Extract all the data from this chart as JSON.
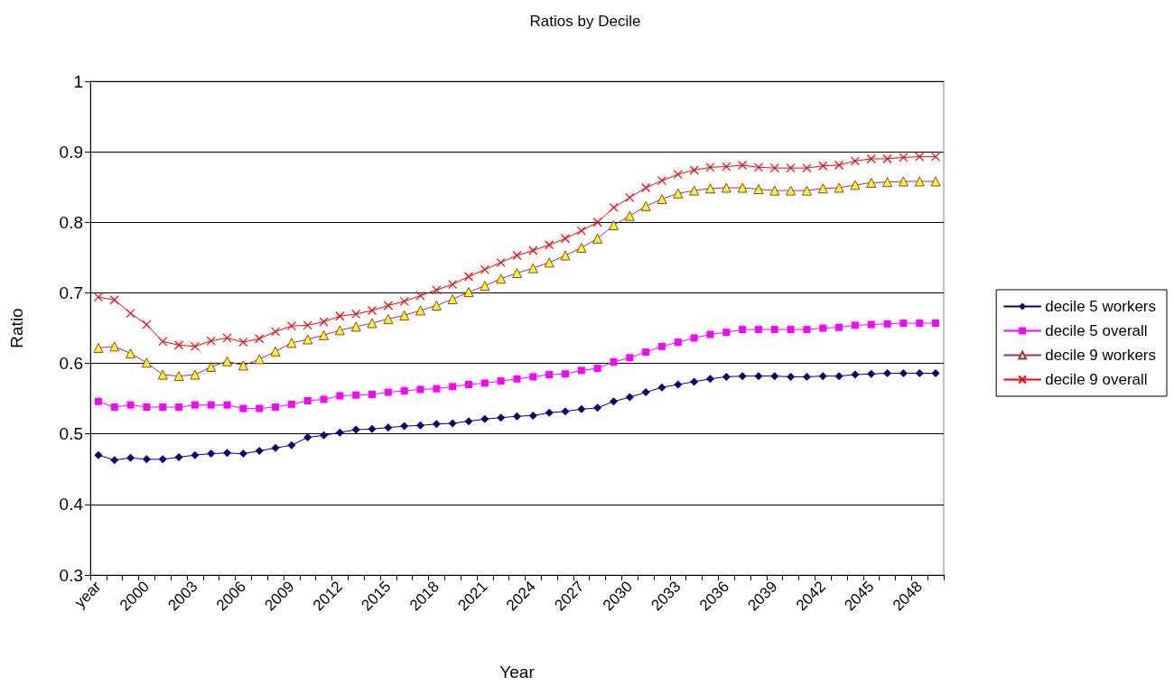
{
  "chart_data": {
    "type": "line",
    "title": "Ratios by Decile",
    "xlabel": "Year",
    "ylabel": "Ratio",
    "categories": [
      "year",
      null,
      null,
      "2000",
      null,
      null,
      "2003",
      null,
      null,
      "2006",
      null,
      null,
      "2009",
      null,
      null,
      "2012",
      null,
      null,
      "2015",
      null,
      null,
      "2018",
      null,
      null,
      "2021",
      null,
      null,
      "2024",
      null,
      null,
      "2027",
      null,
      null,
      "2030",
      null,
      null,
      "2033",
      null,
      null,
      "2036",
      null,
      null,
      "2039",
      null,
      null,
      "2042",
      null,
      null,
      "2045",
      null,
      null,
      "2048",
      null
    ],
    "series": [
      {
        "name": "decile 5 workers",
        "color": "#000080",
        "marker": "diamond",
        "values": [
          0.47,
          0.463,
          0.466,
          0.464,
          0.464,
          0.467,
          0.47,
          0.472,
          0.473,
          0.472,
          0.476,
          0.48,
          0.484,
          0.495,
          0.498,
          0.502,
          0.506,
          0.507,
          0.509,
          0.511,
          0.512,
          0.514,
          0.515,
          0.518,
          0.521,
          0.523,
          0.525,
          0.526,
          0.53,
          0.532,
          0.535,
          0.537,
          0.546,
          0.552,
          0.559,
          0.566,
          0.57,
          0.574,
          0.578,
          0.581,
          0.582,
          0.582,
          0.582,
          0.581,
          0.581,
          0.582,
          0.582,
          0.584,
          0.585,
          0.586,
          0.586,
          0.586,
          0.586
        ]
      },
      {
        "name": "decile 5 overall",
        "color": "#ff00ff",
        "marker": "square",
        "values": [
          0.546,
          0.538,
          0.541,
          0.538,
          0.538,
          0.538,
          0.541,
          0.541,
          0.541,
          0.536,
          0.536,
          0.538,
          0.542,
          0.547,
          0.549,
          0.554,
          0.555,
          0.556,
          0.559,
          0.561,
          0.563,
          0.564,
          0.567,
          0.57,
          0.572,
          0.575,
          0.578,
          0.581,
          0.584,
          0.585,
          0.59,
          0.593,
          0.602,
          0.608,
          0.616,
          0.624,
          0.63,
          0.636,
          0.641,
          0.644,
          0.648,
          0.648,
          0.648,
          0.648,
          0.648,
          0.65,
          0.651,
          0.654,
          0.655,
          0.656,
          0.657,
          0.657,
          0.657
        ]
      },
      {
        "name": "decile 9 workers",
        "color": "#993366",
        "marker": "triangle",
        "colors": [
          "#ffff00",
          "#ffff00",
          "#ffff00",
          "#ffff00",
          "#ffff00",
          "#ffff00",
          "#ffff00",
          "#ffff00",
          "#ffff00",
          "#ffff00",
          "#ffff00",
          "#ffff00",
          "#ffff00",
          "#ffff00",
          "#ffff00",
          "#ffff00",
          "#ffff00",
          "#ffff00",
          "#ffff00",
          "#ffff00",
          "#ffff00",
          "#ffff00",
          "#ffff00",
          "#ffff00",
          "#ffff00",
          "#ffff00",
          "#ffff00",
          "#ffff00",
          "#ffff00",
          "#ffff00",
          "#ffff00",
          "#ffff00",
          "#ffff00",
          "#ffff00",
          "#ffff00",
          "#ffff00",
          "#ffff00",
          "#ffff00",
          "#ffff00",
          "#ffff00",
          "#ffff00",
          "#ffff00",
          "#ffff00",
          "#ffff00",
          "#ffff00",
          "#ffff00",
          "#ffff00",
          "#ffff00",
          "#ffff00",
          "#ffff00",
          "#ffff00",
          "#ffff00",
          "#ffff00"
        ],
        "values": [
          0.622,
          0.624,
          0.614,
          0.601,
          0.584,
          0.582,
          0.584,
          0.595,
          0.603,
          0.597,
          0.606,
          0.617,
          0.629,
          0.634,
          0.64,
          0.647,
          0.652,
          0.657,
          0.663,
          0.668,
          0.675,
          0.682,
          0.691,
          0.701,
          0.71,
          0.72,
          0.728,
          0.735,
          0.743,
          0.753,
          0.764,
          0.777,
          0.796,
          0.809,
          0.823,
          0.833,
          0.841,
          0.845,
          0.848,
          0.849,
          0.849,
          0.847,
          0.845,
          0.845,
          0.845,
          0.848,
          0.849,
          0.853,
          0.856,
          0.857,
          0.858,
          0.858,
          0.858
        ]
      },
      {
        "name": "decile 9 overall",
        "color": "#ff0000",
        "marker": "cross",
        "values": [
          0.694,
          0.69,
          0.671,
          0.655,
          0.631,
          0.626,
          0.624,
          0.632,
          0.636,
          0.63,
          0.635,
          0.645,
          0.653,
          0.654,
          0.659,
          0.667,
          0.67,
          0.675,
          0.682,
          0.688,
          0.696,
          0.704,
          0.712,
          0.723,
          0.733,
          0.743,
          0.753,
          0.76,
          0.768,
          0.777,
          0.788,
          0.8,
          0.821,
          0.835,
          0.849,
          0.859,
          0.868,
          0.874,
          0.878,
          0.879,
          0.881,
          0.878,
          0.877,
          0.877,
          0.877,
          0.88,
          0.881,
          0.887,
          0.89,
          0.89,
          0.892,
          0.893,
          0.893
        ]
      }
    ],
    "ylim": [
      0.3,
      1
    ],
    "yticks": [
      0.3,
      0.4,
      0.5,
      0.6,
      0.7,
      0.8,
      0.9,
      1
    ],
    "grid": "y",
    "legend": "right"
  }
}
